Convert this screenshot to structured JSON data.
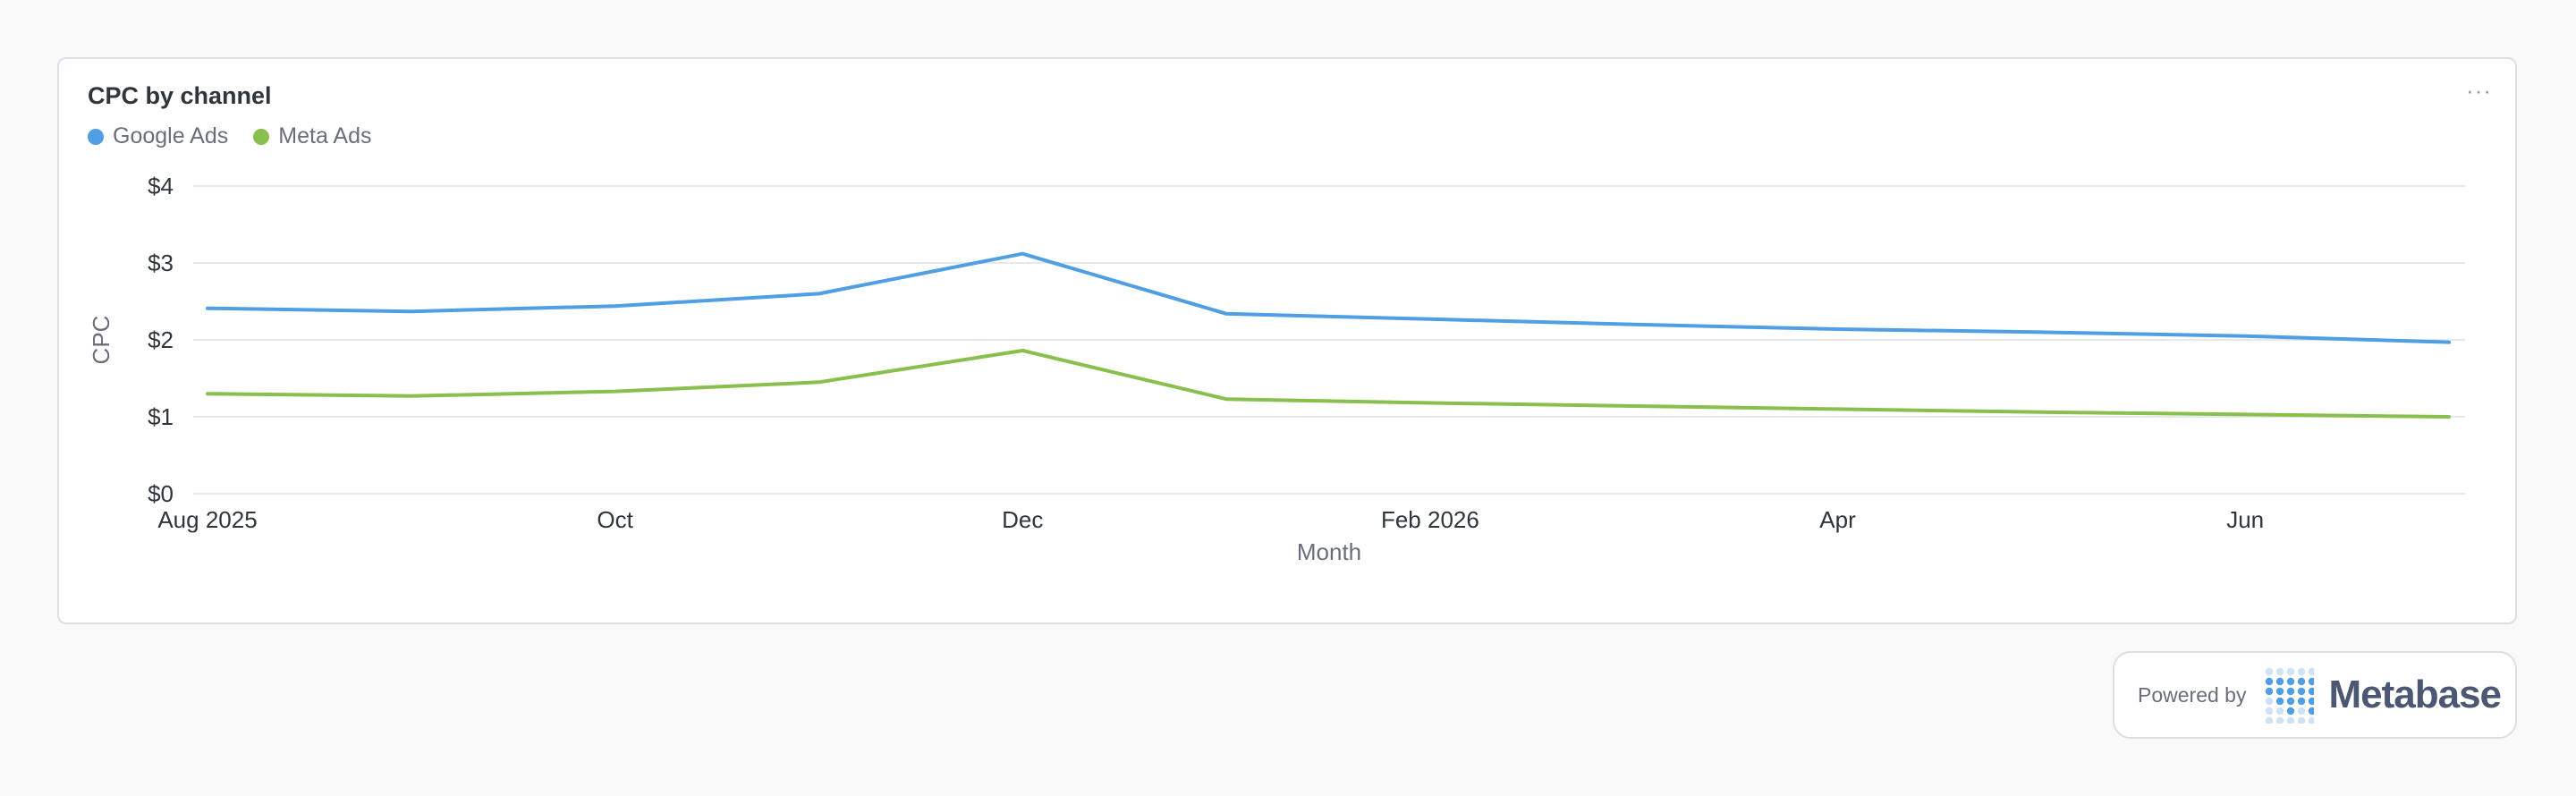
{
  "card": {
    "title": "CPC by channel",
    "menu_icon": "more-horizontal-icon"
  },
  "footer": {
    "powered_label": "Powered by",
    "brand": "Metabase",
    "logo_icon": "metabase-logo-icon"
  },
  "chart_data": {
    "type": "line",
    "title": "CPC by channel",
    "xlabel": "Month",
    "ylabel": "CPC",
    "x": [
      "2025-08",
      "2025-09",
      "2025-10",
      "2025-11",
      "2025-12",
      "2026-01",
      "2026-02",
      "2026-03",
      "2026-04",
      "2026-05",
      "2026-06",
      "2026-07"
    ],
    "x_tick_labels": [
      {
        "x": "2025-08",
        "label": "Aug 2025"
      },
      {
        "x": "2025-10",
        "label": "Oct"
      },
      {
        "x": "2025-12",
        "label": "Dec"
      },
      {
        "x": "2026-02",
        "label": "Feb 2026"
      },
      {
        "x": "2026-04",
        "label": "Apr"
      },
      {
        "x": "2026-06",
        "label": "Jun"
      }
    ],
    "y_ticks": [
      {
        "value": 0,
        "label": "$0"
      },
      {
        "value": 1,
        "label": "$1"
      },
      {
        "value": 2,
        "label": "$2"
      },
      {
        "value": 3,
        "label": "$3"
      },
      {
        "value": 4,
        "label": "$4"
      }
    ],
    "ylim": [
      0,
      4
    ],
    "grid": true,
    "legend_position": "top-left",
    "series": [
      {
        "name": "Google Ads",
        "color": "#509ee3",
        "values": [
          2.41,
          2.37,
          2.44,
          2.6,
          3.12,
          2.34,
          2.27,
          2.2,
          2.14,
          2.1,
          2.05,
          1.97
        ]
      },
      {
        "name": "Meta Ads",
        "color": "#88bf4d",
        "values": [
          1.3,
          1.27,
          1.33,
          1.45,
          1.86,
          1.23,
          1.18,
          1.14,
          1.1,
          1.06,
          1.03,
          1.0
        ]
      }
    ]
  }
}
